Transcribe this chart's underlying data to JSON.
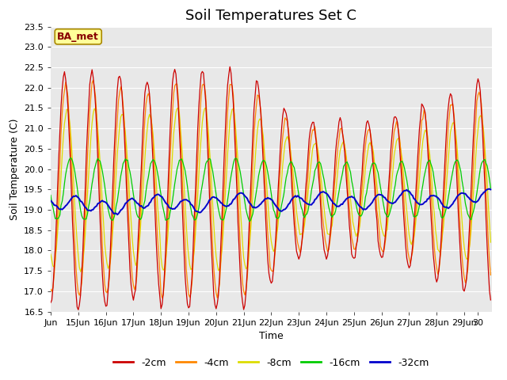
{
  "title": "Soil Temperatures Set C",
  "xlabel": "Time",
  "ylabel": "Soil Temperature (C)",
  "ylim": [
    16.5,
    23.5
  ],
  "x_tick_labels": [
    "Jun",
    "15Jun",
    "16Jun",
    "17Jun",
    "18Jun",
    "19Jun",
    "20Jun",
    "21Jun",
    "22Jun",
    "23Jun",
    "24Jun",
    "25Jun",
    "26Jun",
    "27Jun",
    "28Jun",
    "29Jun",
    "30"
  ],
  "colors": {
    "-2cm": "#cc0000",
    "-4cm": "#ff8800",
    "-8cm": "#dddd00",
    "-16cm": "#00cc00",
    "-32cm": "#0000cc"
  },
  "annotation_text": "BA_met",
  "annotation_bg": "#ffff99",
  "annotation_border": "#aa8800",
  "plot_bg": "#e8e8e8",
  "grid_color": "#ffffff",
  "title_fontsize": 13,
  "axis_fontsize": 9,
  "tick_fontsize": 8
}
